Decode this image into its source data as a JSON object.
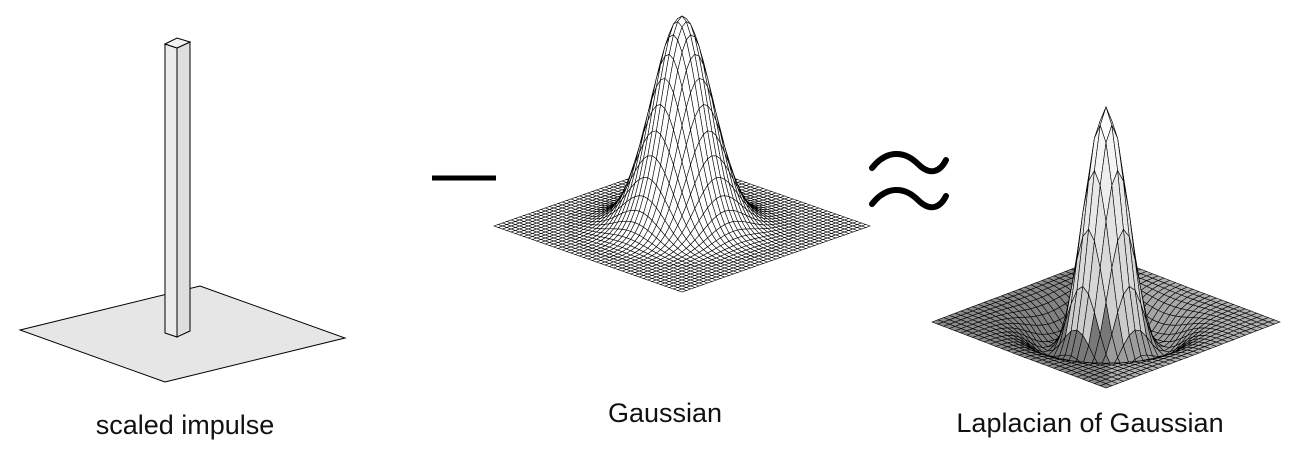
{
  "panels": [
    {
      "caption": "scaled impulse"
    },
    {
      "caption": "Gaussian"
    },
    {
      "caption": "Laplacian of Gaussian"
    }
  ],
  "operators": {
    "minus": "—",
    "approx": "≈"
  },
  "colors": {
    "stroke": "#000000",
    "impulse_fill": "#e6e6e6",
    "impulse_top": "#f2f2f2",
    "mesh_fill": "#ffffff",
    "log_fill_light": "#f4f4f4",
    "log_fill_dark": "#6a6a6a"
  },
  "icons": {
    "minus": "minus-sign-icon",
    "approx": "approx-sign-icon"
  }
}
